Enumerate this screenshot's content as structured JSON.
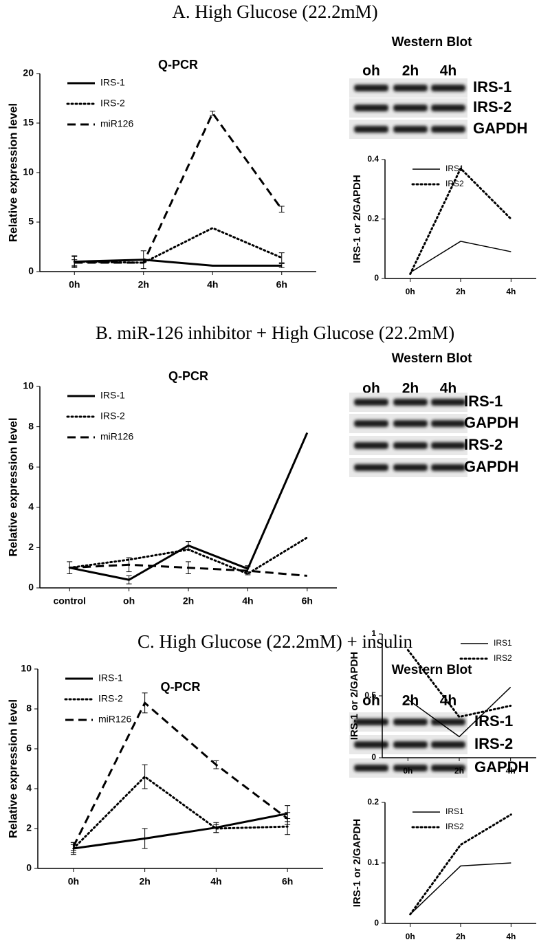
{
  "sections": [
    {
      "title": "A. High Glucose (22.2mM)",
      "blot": {
        "title": "Western Blot",
        "lanes": [
          "oh",
          "2h",
          "4h"
        ],
        "bands": [
          "IRS-1",
          "IRS-2",
          "GAPDH"
        ]
      }
    },
    {
      "title": "B. miR-126 inhibitor + High Glucose (22.2mM)",
      "blot": {
        "title": "Western Blot",
        "lanes": [
          "oh",
          "2h",
          "4h"
        ],
        "bands": [
          "IRS-1",
          "GAPDH",
          "IRS-2",
          "GAPDH"
        ]
      }
    },
    {
      "title": "C. High Glucose (22.2mM) + insulin",
      "blot": {
        "title": "Western Blot",
        "lanes": [
          "oh",
          "2h",
          "4h"
        ],
        "bands": [
          "IRS-1",
          "IRS-2",
          "GAPDH"
        ]
      }
    }
  ],
  "chart_data": [
    {
      "type": "line",
      "title": "Q-PCR",
      "y_label": "Relative expression level",
      "categories": [
        "0h",
        "2h",
        "4h",
        "6h"
      ],
      "ylim": [
        0,
        20
      ],
      "yticks": [
        0,
        5,
        10,
        15,
        20
      ],
      "legend": "upper left",
      "series": [
        {
          "name": "IRS-1",
          "color": "#000000",
          "dash": "solid",
          "values": [
            1.0,
            1.2,
            0.6,
            0.6
          ],
          "errors": [
            0.6,
            0.9,
            null,
            0.2
          ]
        },
        {
          "name": "IRS-2",
          "color": "#000000",
          "dash": "dotted",
          "values": [
            1.0,
            0.9,
            4.4,
            1.4
          ],
          "errors": [
            0.5,
            null,
            null,
            0.5
          ]
        },
        {
          "name": "miR126",
          "color": "#000000",
          "dash": "dashed",
          "values": [
            0.9,
            0.9,
            16.0,
            6.3
          ],
          "errors": [
            0.3,
            null,
            0.2,
            0.3
          ]
        }
      ]
    },
    {
      "type": "line",
      "y_label": "IRS-1 or 2/GAPDH",
      "categories": [
        "0h",
        "2h",
        "4h"
      ],
      "ylim": [
        0,
        0.4
      ],
      "yticks": [
        0,
        0.2,
        0.4
      ],
      "legend": "upper left",
      "series": [
        {
          "name": "IRS1",
          "color": "#000000",
          "dash": "solid",
          "values": [
            0.02,
            0.125,
            0.09
          ]
        },
        {
          "name": "IRS2",
          "color": "#000000",
          "dash": "dotted",
          "values": [
            0.015,
            0.37,
            0.2
          ]
        }
      ]
    },
    {
      "type": "line",
      "title": "Q-PCR",
      "y_label": "Relative expression level",
      "categories": [
        "control",
        "oh",
        "2h",
        "4h",
        "6h"
      ],
      "ylim": [
        0,
        10
      ],
      "yticks": [
        0,
        2,
        4,
        6,
        8,
        10
      ],
      "legend": "upper left",
      "series": [
        {
          "name": "IRS-1",
          "color": "#000000",
          "dash": "solid",
          "values": [
            1.0,
            0.4,
            2.1,
            0.95,
            7.7
          ],
          "errors": [
            0.3,
            0.2,
            0.2,
            0.15,
            null
          ]
        },
        {
          "name": "IRS-2",
          "color": "#000000",
          "dash": "dotted",
          "values": [
            1.0,
            1.4,
            1.9,
            0.7,
            2.5
          ]
        },
        {
          "name": "miR126",
          "color": "#000000",
          "dash": "dashed",
          "values": [
            1.0,
            1.15,
            1.0,
            0.85,
            0.6
          ],
          "errors": [
            null,
            0.35,
            0.3,
            0.2,
            null
          ]
        }
      ]
    },
    {
      "type": "line",
      "y_label": "IRS-1 or 2/GAPDH",
      "categories": [
        "0h",
        "2h",
        "4h"
      ],
      "ylim": [
        0,
        1
      ],
      "yticks": [
        0,
        0.5,
        1
      ],
      "legend": "upper right",
      "series": [
        {
          "name": "IRS1",
          "color": "#000000",
          "dash": "solid",
          "values": [
            0.47,
            0.17,
            0.57
          ]
        },
        {
          "name": "IRS2",
          "color": "#000000",
          "dash": "dotted",
          "values": [
            0.87,
            0.33,
            0.42
          ]
        }
      ]
    },
    {
      "type": "line",
      "title": "Q-PCR",
      "y_label": "Relative expression level",
      "categories": [
        "0h",
        "2h",
        "4h",
        "6h"
      ],
      "ylim": [
        0,
        10
      ],
      "yticks": [
        0,
        2,
        4,
        6,
        8,
        10
      ],
      "legend": "upper left",
      "series": [
        {
          "name": "IRS-1",
          "color": "#000000",
          "dash": "solid",
          "values": [
            1.0,
            1.5,
            2.05,
            2.75
          ],
          "errors": [
            0.3,
            0.5,
            0.25,
            0.4
          ]
        },
        {
          "name": "IRS-2",
          "color": "#000000",
          "dash": "dotted",
          "values": [
            1.0,
            4.6,
            2.0,
            2.1
          ],
          "errors": [
            0.2,
            0.6,
            0.2,
            0.4
          ]
        },
        {
          "name": "miR126",
          "color": "#000000",
          "dash": "dashed",
          "values": [
            1.1,
            8.3,
            5.2,
            2.5
          ],
          "errors": [
            0.2,
            0.5,
            0.2,
            0.3
          ]
        }
      ]
    },
    {
      "type": "line",
      "y_label": "IRS-1 or 2/GAPDH",
      "categories": [
        "0h",
        "2h",
        "4h"
      ],
      "ylim": [
        0,
        0.2
      ],
      "yticks": [
        0,
        0.1,
        0.2
      ],
      "legend": "upper left",
      "series": [
        {
          "name": "IRS1",
          "color": "#000000",
          "dash": "solid",
          "values": [
            0.015,
            0.095,
            0.1
          ]
        },
        {
          "name": "IRS2",
          "color": "#000000",
          "dash": "dotted",
          "values": [
            0.015,
            0.13,
            0.18
          ]
        }
      ]
    }
  ]
}
